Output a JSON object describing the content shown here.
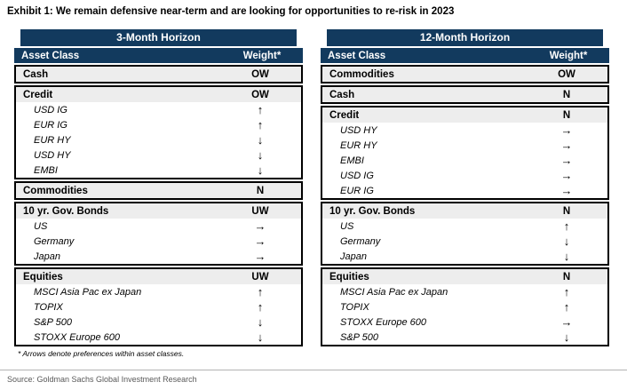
{
  "title": "Exhibit 1: We remain defensive near-term and are looking for opportunities to re-risk in 2023",
  "footnote": "* Arrows denote preferences within asset classes.",
  "source": "Source: Goldman Sachs Global Investment Research",
  "colors": {
    "header_navy": "#123a5e",
    "category_row_bg": "#ededed",
    "rule_gray": "#b3b3b3",
    "source_text_gray": "#595959"
  },
  "columns": {
    "asset_class": "Asset Class",
    "weight": "Weight*"
  },
  "tables": [
    {
      "title": "3-Month Horizon",
      "sections": [
        {
          "rows": [
            {
              "type": "category",
              "label": "Cash",
              "weight": "OW"
            }
          ]
        },
        {
          "rows": [
            {
              "type": "category",
              "label": "Credit",
              "weight": "OW"
            },
            {
              "type": "sub",
              "label": "USD IG",
              "weight": "↑"
            },
            {
              "type": "sub",
              "label": "EUR IG",
              "weight": "↑"
            },
            {
              "type": "sub",
              "label": "EUR HY",
              "weight": "↓"
            },
            {
              "type": "sub",
              "label": "USD HY",
              "weight": "↓"
            },
            {
              "type": "sub",
              "label": "EMBI",
              "weight": "↓"
            }
          ]
        },
        {
          "rows": [
            {
              "type": "category",
              "label": "Commodities",
              "weight": "N"
            }
          ]
        },
        {
          "rows": [
            {
              "type": "category",
              "label": "10 yr. Gov. Bonds",
              "weight": "UW"
            },
            {
              "type": "sub",
              "label": "US",
              "weight": "→"
            },
            {
              "type": "sub",
              "label": "Germany",
              "weight": "→"
            },
            {
              "type": "sub",
              "label": "Japan",
              "weight": "→"
            }
          ]
        },
        {
          "rows": [
            {
              "type": "category",
              "label": "Equities",
              "weight": "UW"
            },
            {
              "type": "sub",
              "label": "MSCI Asia Pac ex Japan",
              "weight": "↑"
            },
            {
              "type": "sub",
              "label": "TOPIX",
              "weight": "↑"
            },
            {
              "type": "sub",
              "label": "S&P 500",
              "weight": "↓"
            },
            {
              "type": "sub",
              "label": "STOXX Europe 600",
              "weight": "↓"
            }
          ]
        }
      ]
    },
    {
      "title": "12-Month Horizon",
      "sections": [
        {
          "rows": [
            {
              "type": "category",
              "label": "Commodities",
              "weight": "OW"
            }
          ]
        },
        {
          "rows": [
            {
              "type": "category",
              "label": "Cash",
              "weight": "N"
            }
          ]
        },
        {
          "rows": [
            {
              "type": "category",
              "label": "Credit",
              "weight": "N"
            },
            {
              "type": "sub",
              "label": "USD HY",
              "weight": "→"
            },
            {
              "type": "sub",
              "label": "EUR HY",
              "weight": "→"
            },
            {
              "type": "sub",
              "label": "EMBI",
              "weight": "→"
            },
            {
              "type": "sub",
              "label": "USD IG",
              "weight": "→"
            },
            {
              "type": "sub",
              "label": "EUR IG",
              "weight": "→"
            }
          ]
        },
        {
          "rows": [
            {
              "type": "category",
              "label": "10 yr. Gov. Bonds",
              "weight": "N"
            },
            {
              "type": "sub",
              "label": "US",
              "weight": "↑"
            },
            {
              "type": "sub",
              "label": "Germany",
              "weight": "↓"
            },
            {
              "type": "sub",
              "label": "Japan",
              "weight": "↓"
            }
          ]
        },
        {
          "rows": [
            {
              "type": "category",
              "label": "Equities",
              "weight": "N"
            },
            {
              "type": "sub",
              "label": "MSCI Asia Pac ex Japan",
              "weight": "↑"
            },
            {
              "type": "sub",
              "label": "TOPIX",
              "weight": "↑"
            },
            {
              "type": "sub",
              "label": "STOXX Europe 600",
              "weight": "→"
            },
            {
              "type": "sub",
              "label": "S&P 500",
              "weight": "↓"
            }
          ]
        }
      ]
    }
  ]
}
